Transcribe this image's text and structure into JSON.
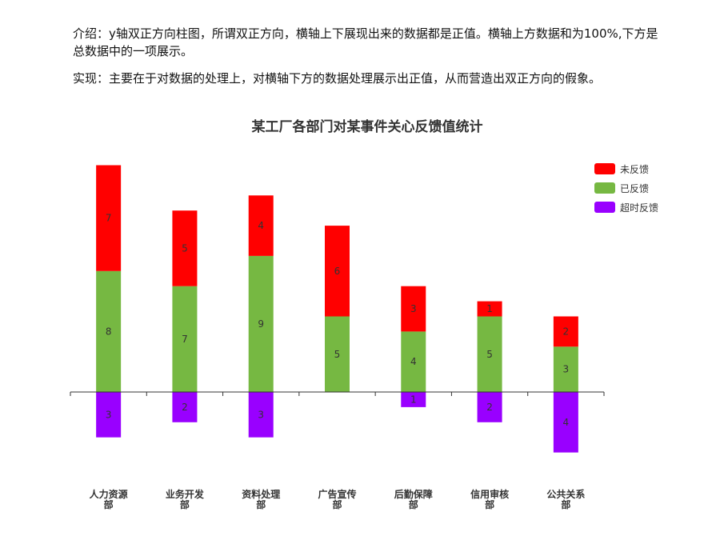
{
  "intro": {
    "line1": "介绍：y轴双正方向柱图，所谓双正方向，横轴上下展现出来的数据都是正值。横轴上方数据和为100%,下方是总数据中的一项展示。",
    "line2": "实现：主要在于对数据的处理上，对横轴下方的数据处理展示出正值，从而营造出双正方向的假象。"
  },
  "colors": {
    "unfed": "#ff0000",
    "fed": "#76b842",
    "timeout": "#9900ff"
  },
  "chart_data": {
    "type": "bar",
    "title": "某工厂各部门对某事件关心反馈值统计",
    "categories": [
      [
        "人力资源",
        "部"
      ],
      [
        "业务开发",
        "部"
      ],
      [
        "资料处理",
        "部"
      ],
      [
        "广告宣传",
        "部"
      ],
      [
        "后勤保障",
        "部"
      ],
      [
        "信用审核",
        "部"
      ],
      [
        "公共关系",
        "部"
      ]
    ],
    "series": [
      {
        "name": "已反馈",
        "stack": "above",
        "values": [
          8,
          7,
          9,
          5,
          4,
          5,
          3
        ]
      },
      {
        "name": "未反馈",
        "stack": "above",
        "values": [
          7,
          5,
          4,
          6,
          3,
          1,
          2
        ]
      },
      {
        "name": "超时反馈",
        "stack": "below",
        "values": [
          3,
          2,
          3,
          0,
          1,
          2,
          4
        ]
      }
    ],
    "legend": [
      "未反馈",
      "已反馈",
      "超时反馈"
    ],
    "legend_position": "top-right",
    "stacked": true,
    "grid": false
  }
}
